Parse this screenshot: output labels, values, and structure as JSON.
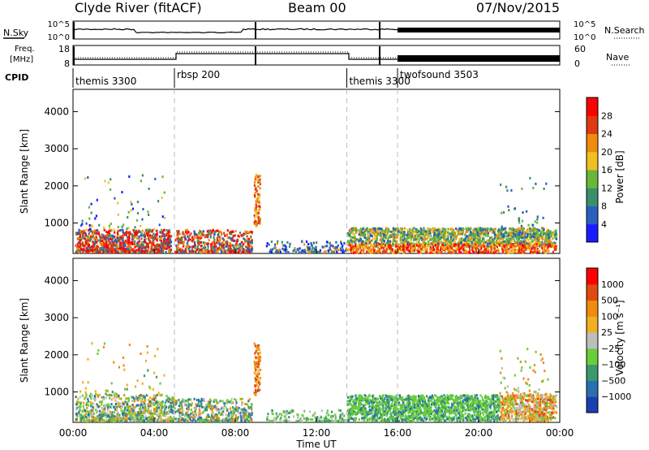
{
  "header": {
    "station": "Clyde River (fitACF)",
    "beam": "Beam 00",
    "date": "07/Nov/2015"
  },
  "side_labels": {
    "nsky": "N.Sky",
    "nsearch": "N.Search",
    "freq_line1": "Freq.",
    "freq_line2": "[MHz]",
    "nave": "Nave",
    "cpid": "CPID"
  },
  "noise_panel": {
    "left_ticks": [
      "10^5",
      "10^0"
    ],
    "right_ticks": [
      "10^5",
      "10^0"
    ]
  },
  "freq_panel": {
    "left_ticks": [
      "18",
      "8"
    ],
    "right_ticks": [
      "60",
      "0"
    ]
  },
  "cpid_segments": [
    {
      "label": "themis 3300",
      "start_hour": 0.0
    },
    {
      "label": "rbsp 200",
      "start_hour": 5.0
    },
    {
      "label": "themis 3300",
      "start_hour": 13.5
    },
    {
      "label": "twofsound 3503",
      "start_hour": 16.0
    }
  ],
  "chart_data": [
    {
      "type": "heatmap",
      "name": "power",
      "ylabel": "Slant Range [km]",
      "ylim": [
        180,
        4600
      ],
      "y_ticks": [
        1000,
        2000,
        3000,
        4000
      ],
      "colorbar": {
        "label": "Power [dB]",
        "ticks": [
          "4",
          "8",
          "12",
          "16",
          "20",
          "24",
          "28"
        ],
        "colors": [
          "#1a1aff",
          "#2a5fc0",
          "#3a8f6a",
          "#6ab53a",
          "#f0c020",
          "#f08a10",
          "#e03a10",
          "#ff0000"
        ]
      },
      "vertical_markers_hours": [
        5.0,
        13.5,
        16.0
      ]
    },
    {
      "type": "heatmap",
      "name": "velocity",
      "ylabel": "Slant Range [km]",
      "ylim": [
        180,
        4600
      ],
      "y_ticks": [
        1000,
        2000,
        3000,
        4000
      ],
      "colorbar": {
        "label": "Velocity [m s⁻¹]",
        "ticks": [
          "1000",
          "500",
          "100",
          "25",
          "−25",
          "−100",
          "−500",
          "−1000"
        ],
        "colors": [
          "#1a3fb0",
          "#2a6fb0",
          "#3a9a6a",
          "#6acd3a",
          "#bdbdbd",
          "#f0b020",
          "#f08a10",
          "#e04a10",
          "#ff0000"
        ]
      },
      "vertical_markers_hours": [
        5.0,
        13.5,
        16.0
      ]
    }
  ],
  "x_axis": {
    "label": "Time UT",
    "ticks": [
      "00:00",
      "04:00",
      "08:00",
      "12:00",
      "16:00",
      "20:00",
      "00:00"
    ],
    "range_hours": [
      0,
      24
    ]
  }
}
